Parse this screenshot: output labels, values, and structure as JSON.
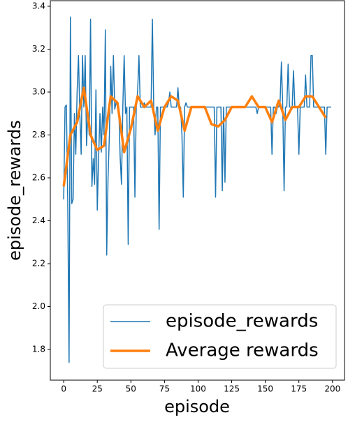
{
  "chart_data": {
    "type": "line",
    "xlabel": "episode",
    "ylabel": "episode_rewards",
    "xlim": [
      -9.95,
      208.95
    ],
    "ylim": [
      1.657,
      3.426
    ],
    "xticks": [
      0,
      25,
      50,
      75,
      100,
      125,
      150,
      175,
      200
    ],
    "yticks": [
      1.8,
      {
        "value": 2.0,
        "label": "2.0"
      },
      2.2,
      2.4,
      2.6,
      2.8,
      {
        "value": 3.0,
        "label": "3.0"
      },
      3.2,
      3.4
    ],
    "legend": "lower right",
    "series": [
      {
        "name": "episode_rewards",
        "color": "#1f77b4",
        "width": 1.5,
        "x": [
          0,
          1,
          2,
          3,
          4,
          5,
          6,
          7,
          8,
          9,
          10,
          11,
          12,
          13,
          14,
          15,
          16,
          17,
          18,
          19,
          20,
          21,
          22,
          23,
          24,
          25,
          26,
          27,
          28,
          29,
          30,
          31,
          32,
          33,
          34,
          35,
          36,
          37,
          38,
          39,
          40,
          41,
          42,
          43,
          44,
          45,
          46,
          47,
          48,
          49,
          50,
          51,
          52,
          53,
          54,
          55,
          56,
          57,
          58,
          59,
          60,
          61,
          62,
          63,
          64,
          65,
          66,
          67,
          68,
          69,
          70,
          71,
          72,
          73,
          74,
          75,
          76,
          77,
          78,
          79,
          80,
          81,
          82,
          83,
          84,
          85,
          86,
          87,
          88,
          89,
          90,
          91,
          92,
          93,
          94,
          95,
          96,
          97,
          98,
          99,
          100,
          101,
          102,
          103,
          104,
          105,
          106,
          107,
          108,
          109,
          110,
          111,
          112,
          113,
          114,
          115,
          116,
          117,
          118,
          119,
          120,
          121,
          122,
          123,
          124,
          125,
          126,
          127,
          128,
          129,
          130,
          131,
          132,
          133,
          134,
          135,
          136,
          137,
          138,
          139,
          140,
          141,
          142,
          143,
          144,
          145,
          146,
          147,
          148,
          149,
          150,
          151,
          152,
          153,
          154,
          155,
          156,
          157,
          158,
          159,
          160,
          161,
          162,
          163,
          164,
          165,
          166,
          167,
          168,
          169,
          170,
          171,
          172,
          173,
          174,
          175,
          176,
          177,
          178,
          179,
          180,
          181,
          182,
          183,
          184,
          185,
          186,
          187,
          188,
          189,
          190,
          191,
          192,
          193,
          194,
          195,
          196,
          197,
          198,
          199
        ],
        "values": [
          2.5,
          2.93,
          2.94,
          2.5,
          1.74,
          3.35,
          2.48,
          2.5,
          2.9,
          2.71,
          3.0,
          3.17,
          2.9,
          2.71,
          3.17,
          2.93,
          3.17,
          2.75,
          2.9,
          2.8,
          3.34,
          2.56,
          2.69,
          2.57,
          3.01,
          2.45,
          2.7,
          2.9,
          2.72,
          2.93,
          2.8,
          3.29,
          2.24,
          2.6,
          2.8,
          3.12,
          2.9,
          3.17,
          2.92,
          2.95,
          2.94,
          2.93,
          2.7,
          2.57,
          2.93,
          3.17,
          2.9,
          2.93,
          2.29,
          2.93,
          2.93,
          2.93,
          2.93,
          2.51,
          2.93,
          3.0,
          3.17,
          2.93,
          2.93,
          2.93,
          2.95,
          2.93,
          2.93,
          2.93,
          2.93,
          2.93,
          3.34,
          2.93,
          2.8,
          2.93,
          2.93,
          2.36,
          2.93,
          2.93,
          2.93,
          2.93,
          2.93,
          2.93,
          2.95,
          3.0,
          2.93,
          2.93,
          2.93,
          2.93,
          2.93,
          3.02,
          2.93,
          2.93,
          2.8,
          2.51,
          2.93,
          2.95,
          2.93,
          2.93,
          2.93,
          2.93,
          2.93,
          2.93,
          2.93,
          2.93,
          2.93,
          2.93,
          2.93,
          2.93,
          2.93,
          2.93,
          2.93,
          2.93,
          2.93,
          2.93,
          2.93,
          2.93,
          2.93,
          2.51,
          2.93,
          2.93,
          2.93,
          2.93,
          2.54,
          2.93,
          2.58,
          2.93,
          2.93,
          2.93,
          2.93,
          2.93,
          2.93,
          2.93,
          2.93,
          2.93,
          2.93,
          2.93,
          2.93,
          2.93,
          2.93,
          2.93,
          2.93,
          2.93,
          2.93,
          2.93,
          2.93,
          2.93,
          2.93,
          2.93,
          2.9,
          2.93,
          2.93,
          2.93,
          2.93,
          2.93,
          2.93,
          2.93,
          2.93,
          2.93,
          2.93,
          2.71,
          2.93,
          2.93,
          2.9,
          2.93,
          2.93,
          2.95,
          3.14,
          2.93,
          2.54,
          2.93,
          2.93,
          3.13,
          2.93,
          2.93,
          2.93,
          3.1,
          2.93,
          2.93,
          2.93,
          2.71,
          2.93,
          2.93,
          2.93,
          2.93,
          3.08,
          2.93,
          2.93,
          2.93,
          3.17,
          3.17,
          2.93,
          2.93,
          2.93,
          2.93,
          2.93,
          2.93,
          2.93,
          2.93,
          2.93,
          2.71,
          2.93,
          2.93,
          2.93,
          2.93
        ]
      },
      {
        "name": "Average rewards",
        "color": "#ff7f0e",
        "width": 3.5,
        "x": [
          0,
          5,
          10,
          15,
          20,
          25,
          30,
          35,
          40,
          45,
          50,
          55,
          60,
          65,
          70,
          75,
          80,
          85,
          90,
          95,
          100,
          105,
          110,
          115,
          120,
          125,
          130,
          135,
          140,
          145,
          150,
          155,
          160,
          165,
          170,
          175,
          180,
          185,
          190,
          195
        ],
        "values": [
          2.56,
          2.8,
          2.86,
          3.02,
          2.8,
          2.73,
          2.75,
          2.98,
          2.95,
          2.72,
          2.83,
          2.98,
          2.93,
          2.96,
          2.82,
          2.93,
          2.98,
          2.96,
          2.82,
          2.93,
          2.93,
          2.93,
          2.85,
          2.84,
          2.87,
          2.93,
          2.93,
          2.93,
          2.98,
          2.93,
          2.93,
          2.86,
          2.96,
          2.87,
          2.93,
          2.93,
          2.98,
          2.98,
          2.93,
          2.88
        ]
      }
    ]
  }
}
